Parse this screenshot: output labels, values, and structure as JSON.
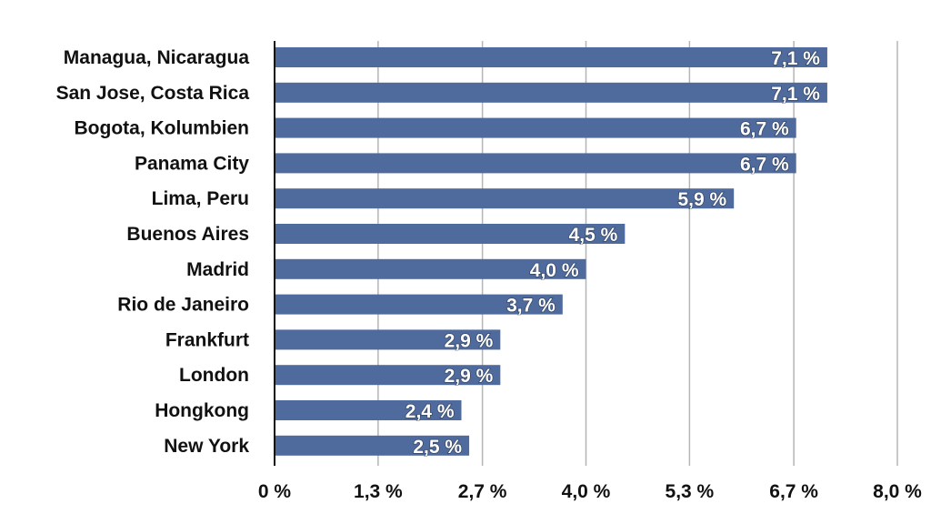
{
  "chart_data": {
    "type": "bar",
    "orientation": "horizontal",
    "categories": [
      "Managua, Nicaragua",
      "San Jose, Costa Rica",
      "Bogota, Kolumbien",
      "Panama City",
      "Lima, Peru",
      "Buenos Aires",
      "Madrid",
      "Rio de Janeiro",
      "Frankfurt",
      "London",
      "Hongkong",
      "New York"
    ],
    "values": [
      7.1,
      7.1,
      6.7,
      6.7,
      5.9,
      4.5,
      4.0,
      3.7,
      2.9,
      2.9,
      2.4,
      2.5
    ],
    "value_labels": [
      "7,1 %",
      "7,1 %",
      "6,7 %",
      "6,7 %",
      "5,9 %",
      "4,5 %",
      "4,0 %",
      "3,7 %",
      "2,9 %",
      "2,9 %",
      "2,4 %",
      "2,5 %"
    ],
    "xticks": [
      0,
      1.33,
      2.67,
      4.0,
      5.33,
      6.67,
      8.0
    ],
    "xtick_labels": [
      "0 %",
      "1,3 %",
      "2,7 %",
      "4,0 %",
      "5,3 %",
      "6,7 %",
      "8,0 %"
    ],
    "xlim": [
      0,
      8.0
    ],
    "title": "",
    "xlabel": "",
    "ylabel": "",
    "grid": "vertical",
    "bar_color": "#4F6A9C",
    "grid_color": "#B5B5B5",
    "legend": "none"
  }
}
